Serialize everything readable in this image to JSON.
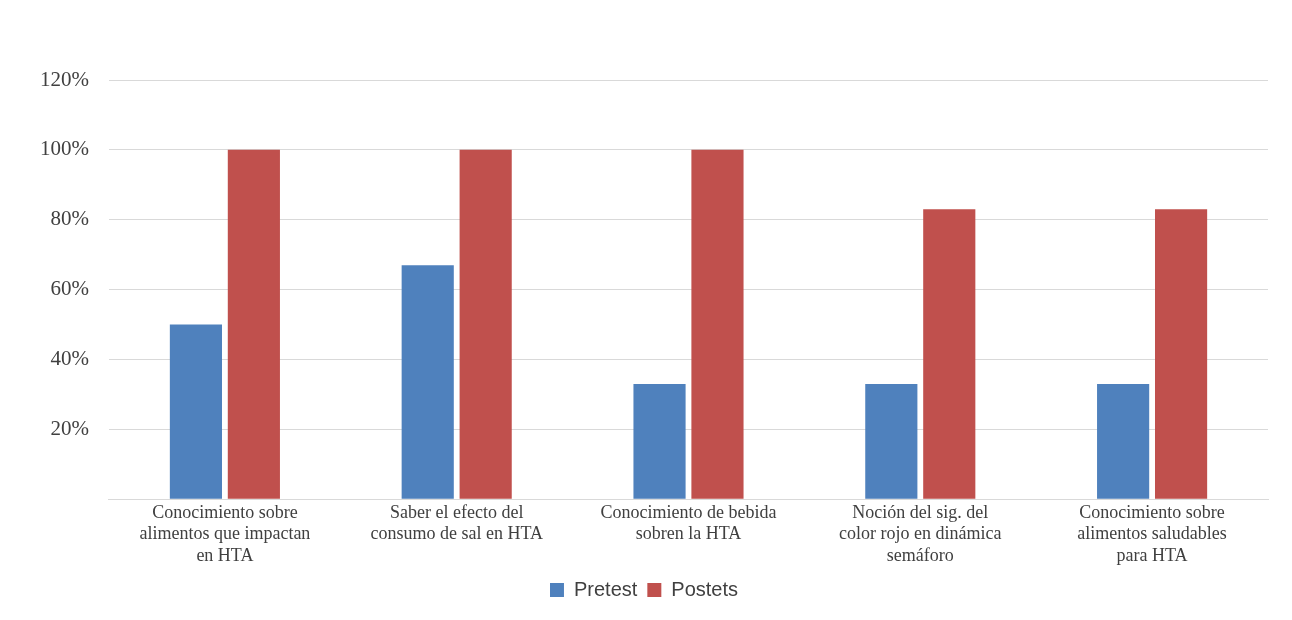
{
  "chart_data": {
    "type": "bar",
    "categories": [
      "Conocimiento sobre alimentos que impactan en HTA",
      "Saber el efecto del consumo de sal  en HTA",
      "Conocimiento de bebida sobren la HTA",
      "Noción del sig. del color rojo en dinámica semáforo",
      "Conocimiento sobre alimentos saludables para HTA"
    ],
    "series": [
      {
        "name": "Pretest",
        "color": "#4f81bd",
        "values": [
          50,
          67,
          33,
          33,
          33
        ]
      },
      {
        "name": "Postets",
        "color": "#c0504d",
        "values": [
          100,
          100,
          100,
          83,
          83
        ]
      }
    ],
    "ylim": [
      0,
      120
    ],
    "yticks": [
      {
        "value": 0,
        "label": null
      },
      {
        "value": 20,
        "label": "20%"
      },
      {
        "value": 40,
        "label": "40%"
      },
      {
        "value": 60,
        "label": "60%"
      },
      {
        "value": 80,
        "label": "80%"
      },
      {
        "value": 100,
        "label": "100%"
      },
      {
        "value": 120,
        "label": "120%"
      }
    ],
    "grid": "y",
    "legend": "bottom"
  }
}
